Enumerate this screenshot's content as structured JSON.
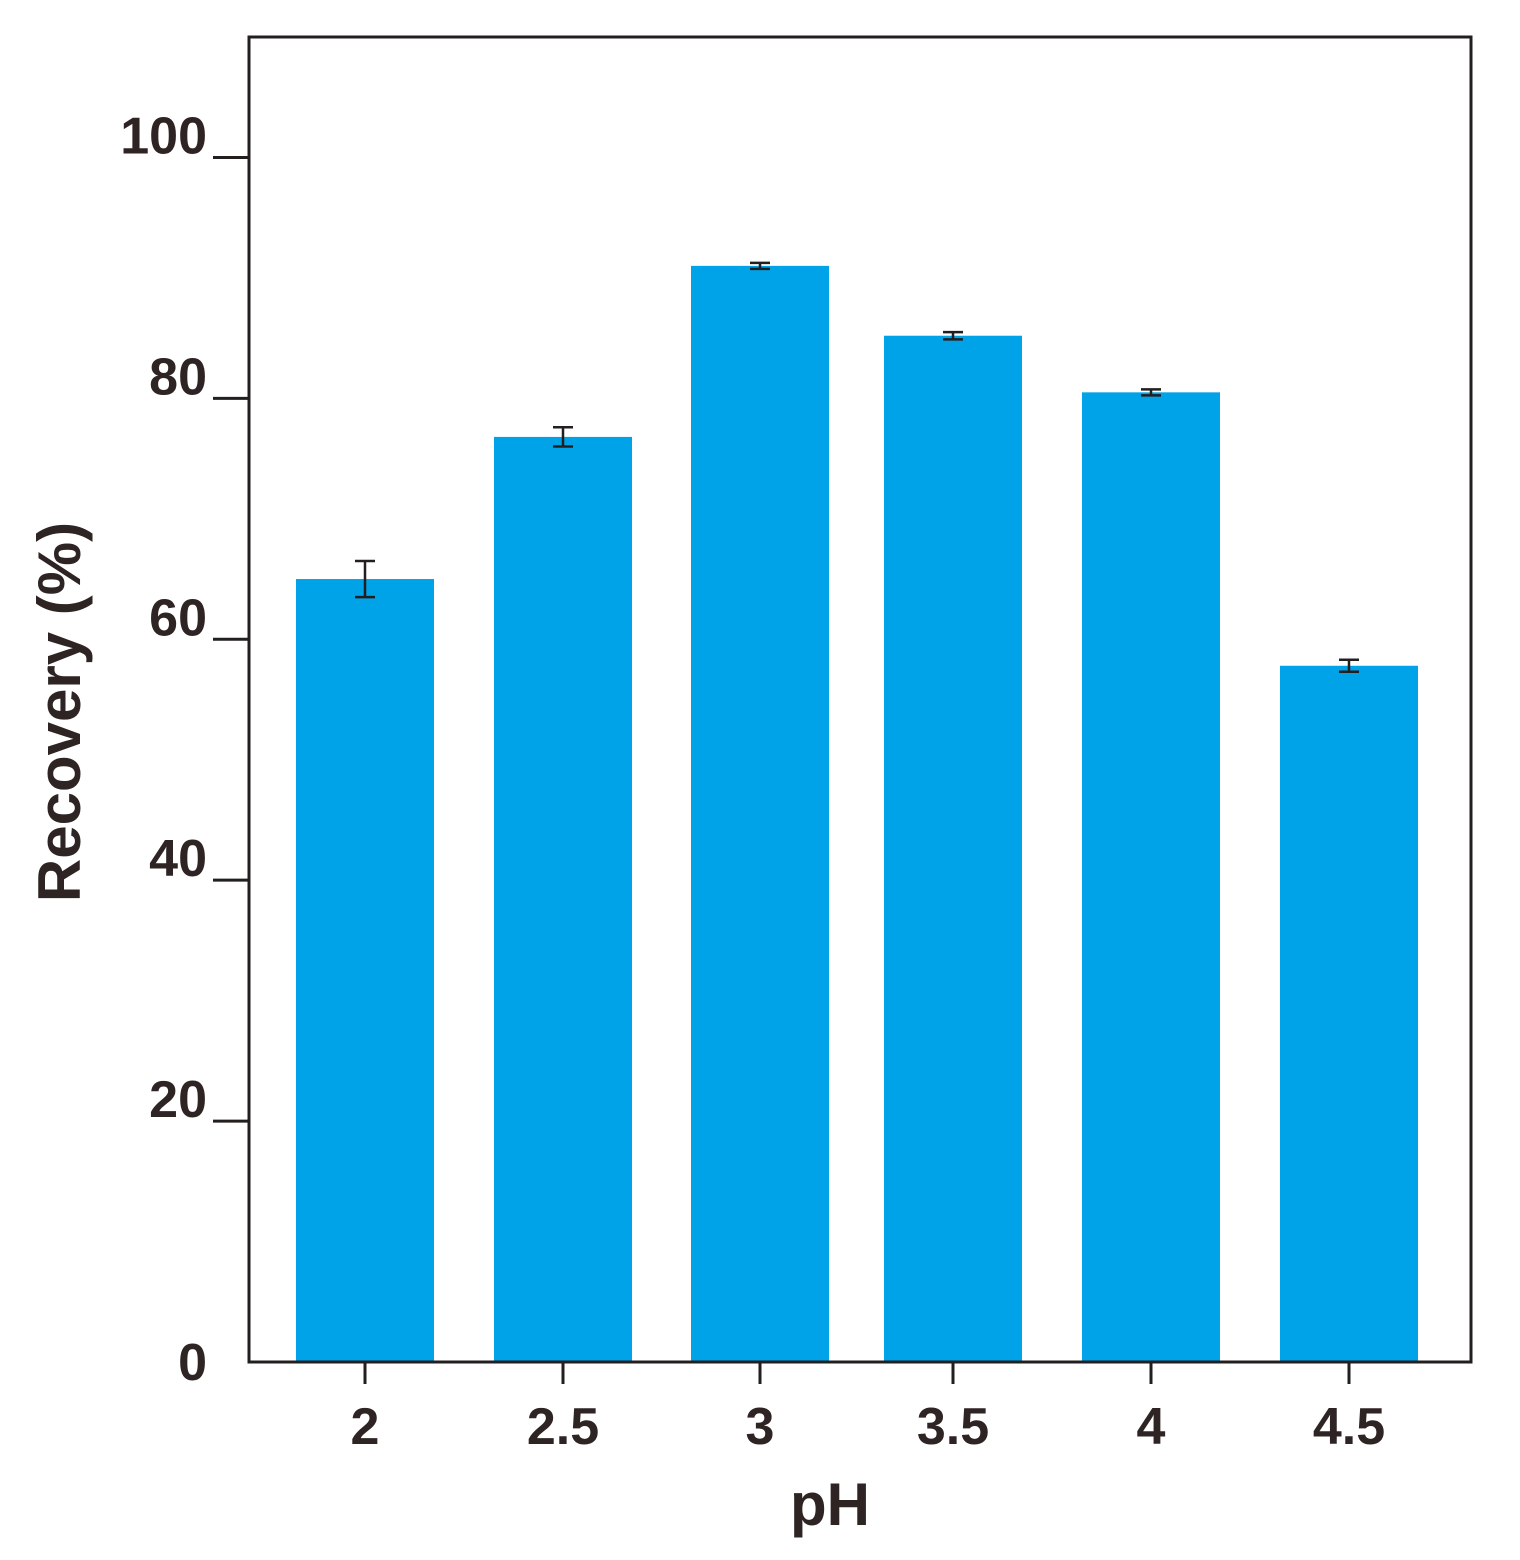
{
  "chart_data": {
    "type": "bar",
    "categories": [
      "2",
      "2.5",
      "3",
      "3.5",
      "4",
      "4.5"
    ],
    "values": [
      65.0,
      76.8,
      91.0,
      85.2,
      80.5,
      57.8
    ],
    "errors": [
      1.5,
      0.8,
      0.25,
      0.3,
      0.25,
      0.5
    ],
    "xlabel": "pH",
    "ylabel": "Recovery (%)",
    "ylim": [
      0,
      110
    ],
    "yticks": [
      0,
      20,
      40,
      60,
      80,
      100
    ],
    "grid": false,
    "bar_color": "#00a3e8",
    "axis_color": "#231f1f",
    "text_color": "#2e2424"
  }
}
